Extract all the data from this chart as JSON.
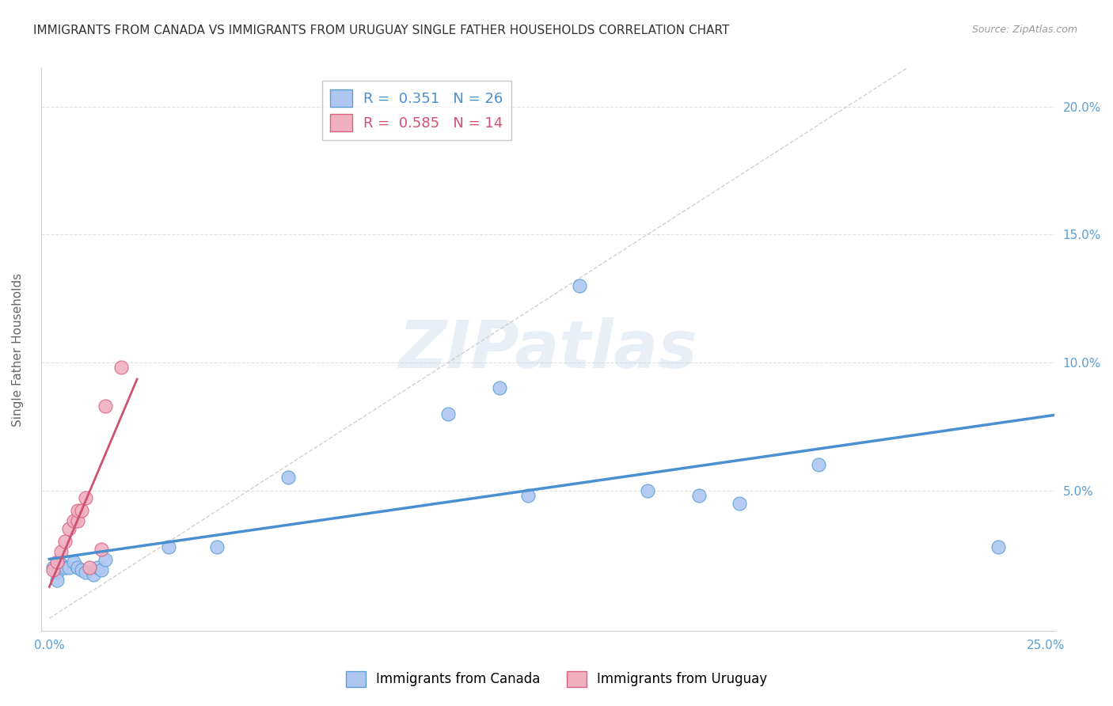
{
  "title": "IMMIGRANTS FROM CANADA VS IMMIGRANTS FROM URUGUAY SINGLE FATHER HOUSEHOLDS CORRELATION CHART",
  "source": "Source: ZipAtlas.com",
  "ylabel_label": "Single Father Households",
  "xlim": [
    -0.002,
    0.252
  ],
  "ylim": [
    -0.005,
    0.215
  ],
  "xtick_positions": [
    0.0,
    0.05,
    0.1,
    0.15,
    0.2,
    0.25
  ],
  "xtick_labels": [
    "0.0%",
    "",
    "",
    "",
    "",
    "25.0%"
  ],
  "ytick_positions": [
    0.05,
    0.1,
    0.15,
    0.2
  ],
  "ytick_labels_right": [
    "5.0%",
    "10.0%",
    "15.0%",
    "20.0%"
  ],
  "canada_color": "#aec6f0",
  "canada_color_dark": "#5a9fd4",
  "canada_line_color": "#4a8fcf",
  "uruguay_color": "#f0b0c0",
  "uruguay_color_dark": "#d96080",
  "uruguay_line_color": "#d05070",
  "canada_R": 0.351,
  "canada_N": 26,
  "uruguay_R": 0.585,
  "uruguay_N": 14,
  "watermark": "ZIPatlas",
  "canada_x": [
    0.001,
    0.002,
    0.002,
    0.003,
    0.004,
    0.005,
    0.006,
    0.007,
    0.008,
    0.009,
    0.011,
    0.012,
    0.013,
    0.014,
    0.03,
    0.042,
    0.06,
    0.1,
    0.113,
    0.12,
    0.133,
    0.15,
    0.163,
    0.173,
    0.193,
    0.238
  ],
  "canada_y": [
    0.02,
    0.018,
    0.015,
    0.021,
    0.02,
    0.02,
    0.022,
    0.02,
    0.019,
    0.018,
    0.017,
    0.02,
    0.019,
    0.023,
    0.028,
    0.028,
    0.055,
    0.08,
    0.09,
    0.048,
    0.13,
    0.05,
    0.048,
    0.045,
    0.06,
    0.028
  ],
  "uruguay_x": [
    0.001,
    0.002,
    0.003,
    0.004,
    0.005,
    0.006,
    0.007,
    0.007,
    0.008,
    0.009,
    0.01,
    0.013,
    0.014,
    0.018
  ],
  "uruguay_y": [
    0.019,
    0.022,
    0.026,
    0.03,
    0.035,
    0.038,
    0.038,
    0.042,
    0.042,
    0.047,
    0.02,
    0.027,
    0.083,
    0.098
  ],
  "grid_color": "#e0e0e0",
  "bg_color": "#ffffff",
  "title_color": "#333333",
  "title_fontsize": 11,
  "source_fontsize": 9,
  "tick_fontsize": 11,
  "axis_color": "#5a9fd4",
  "ylabel_color": "#666666"
}
